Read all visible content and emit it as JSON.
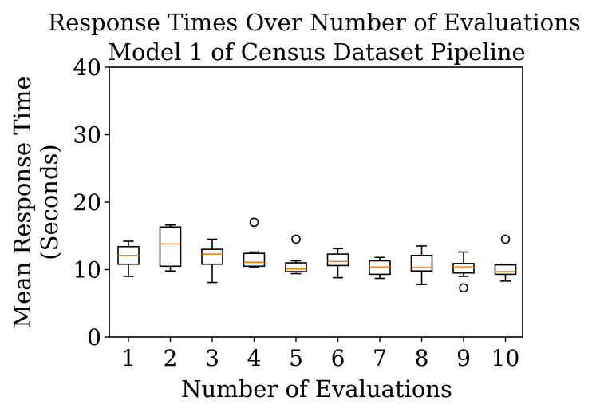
{
  "chart_data": {
    "type": "box",
    "title_line1": "Response Times Over Number of Evaluations",
    "title_line2": "Model 1 of Census Dataset Pipeline",
    "xlabel": "Number of Evaluations",
    "ylabel_line1": "Mean Response Time",
    "ylabel_line2": "(Seconds)",
    "ylim": [
      0,
      40
    ],
    "yticks": [
      0,
      10,
      20,
      30,
      40
    ],
    "categories": [
      "1",
      "2",
      "3",
      "4",
      "5",
      "6",
      "7",
      "8",
      "9",
      "10"
    ],
    "boxes": [
      {
        "label": "1",
        "whislo": 9.0,
        "q1": 10.8,
        "med": 12.1,
        "q3": 13.4,
        "whishi": 14.2,
        "fliers": []
      },
      {
        "label": "2",
        "whislo": 9.8,
        "q1": 10.5,
        "med": 13.8,
        "q3": 16.3,
        "whishi": 16.6,
        "fliers": []
      },
      {
        "label": "3",
        "whislo": 8.1,
        "q1": 10.8,
        "med": 12.3,
        "q3": 13.0,
        "whishi": 14.5,
        "fliers": []
      },
      {
        "label": "4",
        "whislo": 10.3,
        "q1": 10.5,
        "med": 11.1,
        "q3": 12.4,
        "whishi": 12.6,
        "fliers": [
          17.0
        ]
      },
      {
        "label": "5",
        "whislo": 9.4,
        "q1": 9.7,
        "med": 10.1,
        "q3": 11.0,
        "whishi": 11.3,
        "fliers": [
          14.5
        ]
      },
      {
        "label": "6",
        "whislo": 8.8,
        "q1": 10.6,
        "med": 11.2,
        "q3": 12.3,
        "whishi": 13.1,
        "fliers": []
      },
      {
        "label": "7",
        "whislo": 8.7,
        "q1": 9.3,
        "med": 10.4,
        "q3": 11.3,
        "whishi": 11.8,
        "fliers": []
      },
      {
        "label": "8",
        "whislo": 7.8,
        "q1": 9.8,
        "med": 10.3,
        "q3": 12.1,
        "whishi": 13.5,
        "fliers": []
      },
      {
        "label": "9",
        "whislo": 9.0,
        "q1": 9.5,
        "med": 10.4,
        "q3": 10.9,
        "whishi": 12.6,
        "fliers": [
          7.3
        ]
      },
      {
        "label": "10",
        "whislo": 8.3,
        "q1": 9.3,
        "med": 9.7,
        "q3": 10.7,
        "whishi": 10.8,
        "fliers": [
          14.5
        ]
      }
    ],
    "colors": {
      "box": "#000000",
      "median": "#ff7f0e",
      "flier": "#000000"
    }
  }
}
